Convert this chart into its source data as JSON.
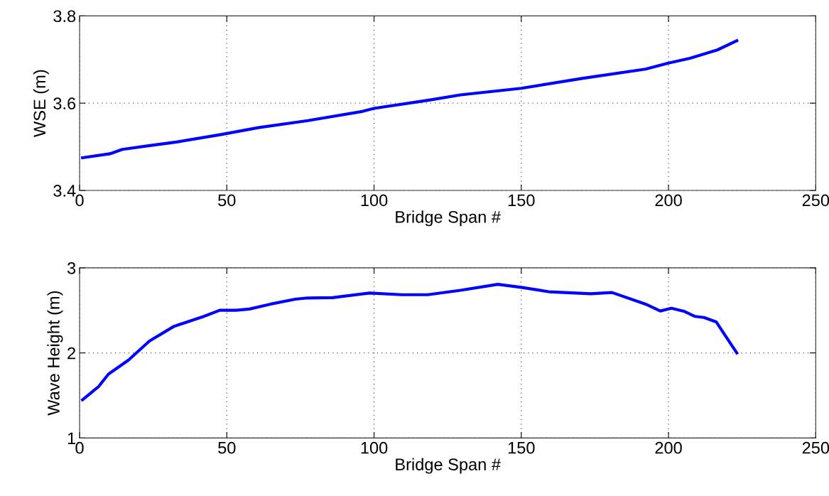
{
  "chart_data": [
    {
      "type": "line",
      "xlabel": "Bridge Span #",
      "ylabel": "WSE (m)",
      "xlim": [
        0,
        250
      ],
      "xticks": [
        0,
        50,
        100,
        150,
        200,
        250
      ],
      "ylim": [
        3.4,
        3.8
      ],
      "yticks": [
        3.4,
        3.6,
        3.8
      ],
      "grid": true,
      "line_style": "solid",
      "series": [
        {
          "color": "#0000ff",
          "x": [
            1,
            10.3,
            14.5,
            22.9,
            32.9,
            48,
            60.7,
            77.5,
            96,
            100,
            118.7,
            129.4,
            150,
            171,
            192.2,
            200,
            207.3,
            216.6,
            223.2
          ],
          "values": [
            3.475,
            3.484,
            3.494,
            3.502,
            3.511,
            3.528,
            3.544,
            3.56,
            3.581,
            3.588,
            3.607,
            3.619,
            3.634,
            3.657,
            3.678,
            3.692,
            3.703,
            3.722,
            3.743
          ]
        }
      ]
    },
    {
      "type": "line",
      "xlabel": "Bridge Span #",
      "ylabel": "Wave Height (m)",
      "xlim": [
        0,
        250
      ],
      "xticks": [
        0,
        50,
        100,
        150,
        200,
        250
      ],
      "ylim": [
        1,
        3
      ],
      "yticks": [
        1,
        2,
        3
      ],
      "grid": true,
      "line_style": "solid",
      "series": [
        {
          "color": "#0000ff",
          "x": [
            1,
            6.5,
            9.8,
            16.6,
            23.7,
            32.1,
            42.2,
            47.6,
            53.1,
            57.7,
            64.9,
            73.3,
            77.5,
            85.9,
            98.5,
            109.4,
            118.2,
            129.4,
            142,
            150,
            159.3,
            173.6,
            180.8,
            192.2,
            197.2,
            201,
            205.2,
            209,
            212,
            216.2,
            223.2
          ],
          "values": [
            1.449,
            1.606,
            1.751,
            1.916,
            2.139,
            2.313,
            2.429,
            2.501,
            2.501,
            2.516,
            2.574,
            2.632,
            2.646,
            2.649,
            2.704,
            2.684,
            2.684,
            2.736,
            2.806,
            2.771,
            2.719,
            2.696,
            2.71,
            2.574,
            2.493,
            2.525,
            2.49,
            2.429,
            2.417,
            2.365,
            2.0
          ]
        }
      ]
    }
  ]
}
